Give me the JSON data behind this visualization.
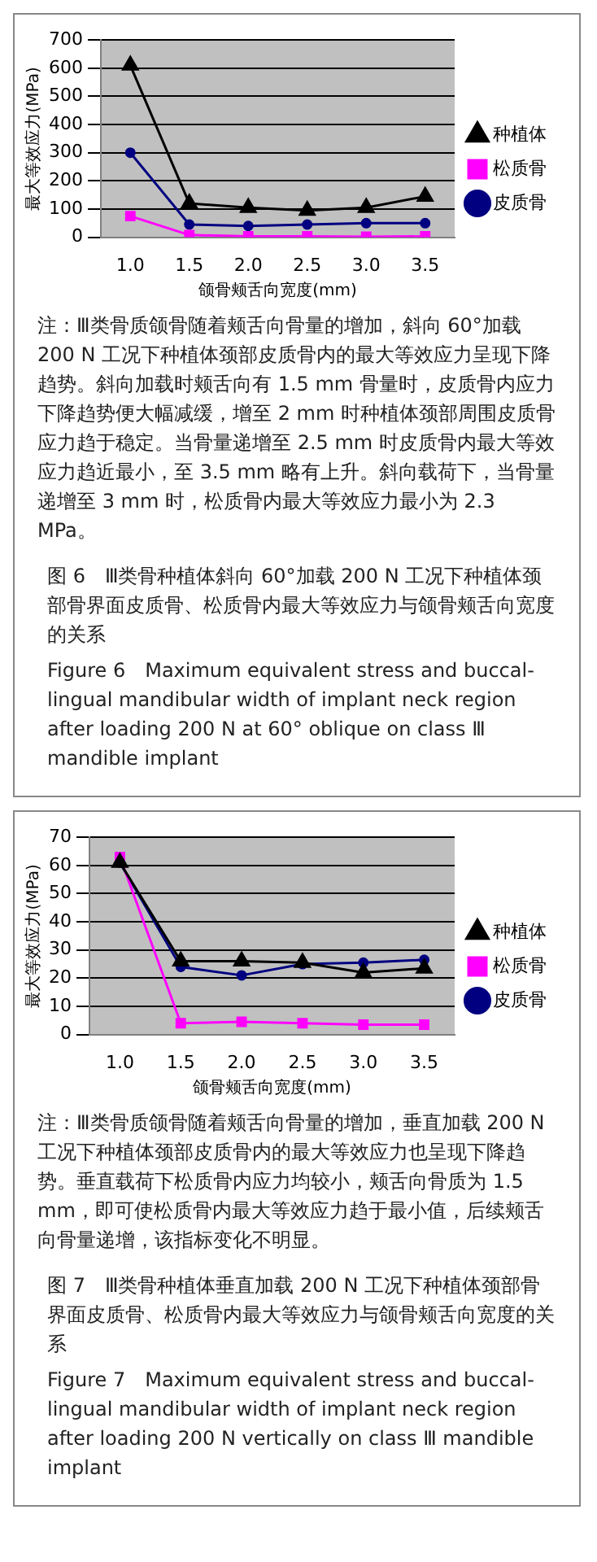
{
  "chart_data": [
    {
      "type": "line",
      "categories": [
        "1.0",
        "1.5",
        "2.0",
        "2.5",
        "3.0",
        "3.5"
      ],
      "xlabel": "颌骨颊舌向宽度(mm)",
      "ylabel": "最大等效应力(MPa)",
      "ylim": [
        0,
        700
      ],
      "yticks": [
        0,
        100,
        200,
        300,
        400,
        500,
        600,
        700
      ],
      "grid": "y",
      "legend": "right",
      "series": [
        {
          "name": "皮质骨",
          "color": "#000080",
          "marker": "circle",
          "values": [
            300,
            45,
            40,
            45,
            50,
            50
          ]
        },
        {
          "name": "松质骨",
          "color": "#ff00ff",
          "marker": "square",
          "values": [
            75,
            8,
            3,
            3,
            2,
            3
          ]
        },
        {
          "name": "种植体",
          "color": "#000000",
          "marker": "triangle",
          "values": [
            610,
            120,
            105,
            95,
            105,
            145
          ]
        }
      ],
      "annotations": [
        "注：Ⅲ类骨质颌骨随着颊舌向骨量的增加，斜向 60°加载 200 N 工况下种植体颈部皮质骨内的最大等效应力呈现下降趋势。斜向加载时颊舌向有 1.5 mm 骨量时，皮质骨内应力下降趋势便大幅减缓，增至 2 mm 时种植体颈部周围皮质骨应力趋于稳定。当骨量递增至 2.5 mm 时皮质骨内最大等效应力趋近最小，至 3.5 mm 略有上升。斜向载荷下，当骨量递增至 3 mm 时，松质骨内最大等效应力最小为 2.3 MPa。",
        "图 6　Ⅲ类骨种植体斜向 60°加载 200 N 工况下种植体颈部骨界面皮质骨、松质骨内最大等效应力与颌骨颊舌向宽度的关系",
        "Figure 6　Maximum equivalent stress and buccal-lingual mandibular width of implant neck region after loading 200 N at 60° oblique on class Ⅲ mandible implant"
      ]
    },
    {
      "type": "line",
      "categories": [
        "1.0",
        "1.5",
        "2.0",
        "2.5",
        "3.0",
        "3.5"
      ],
      "xlabel": "颌骨颊舌向宽度(mm)",
      "ylabel": "最大等效应力(MPa)",
      "ylim": [
        0,
        70
      ],
      "yticks": [
        0,
        10,
        20,
        30,
        40,
        50,
        60,
        70
      ],
      "grid": "y",
      "legend": "right",
      "series": [
        {
          "name": "皮质骨",
          "color": "#000080",
          "marker": "circle",
          "values": [
            61,
            24,
            21,
            25,
            25.5,
            26.5
          ]
        },
        {
          "name": "松质骨",
          "color": "#ff00ff",
          "marker": "square",
          "values": [
            63,
            4,
            4.5,
            4,
            3.5,
            3.5
          ]
        },
        {
          "name": "种植体",
          "color": "#000000",
          "marker": "triangle",
          "values": [
            61,
            26,
            26,
            25.5,
            22,
            23.5
          ]
        }
      ],
      "annotations": [
        "注：Ⅲ类骨质颌骨随着颊舌向骨量的增加，垂直加载 200 N 工况下种植体颈部皮质骨内的最大等效应力也呈现下降趋势。垂直载荷下松质骨内应力均较小，颊舌向骨质为 1.5 mm，即可使松质骨内最大等效应力趋于最小值，后续颊舌向骨量递增，该指标变化不明显。",
        "图 7　Ⅲ类骨种植体垂直加载 200 N 工况下种植体颈部骨界面皮质骨、松质骨内最大等效应力与颌骨颊舌向宽度的关系",
        "Figure 7　Maximum equivalent stress and buccal-lingual mandibular width of implant neck region after loading 200 N vertically on class Ⅲ mandible implant"
      ]
    }
  ]
}
